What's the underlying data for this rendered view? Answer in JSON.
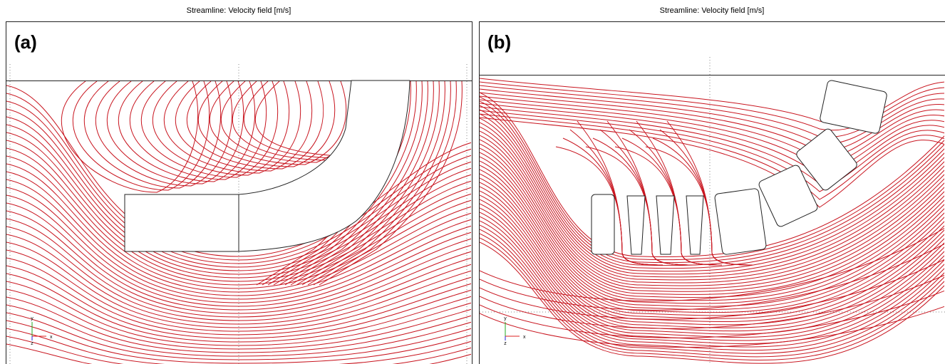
{
  "panels": [
    {
      "title": "Streamline: Velocity field [m/s]",
      "label": "(a)",
      "axes": {
        "x": "x",
        "y": "y",
        "z": "z"
      }
    },
    {
      "title": "Streamline: Velocity field [m/s]",
      "label": "(b)",
      "axes": {
        "x": "x",
        "y": "y",
        "z": "z"
      }
    }
  ]
}
